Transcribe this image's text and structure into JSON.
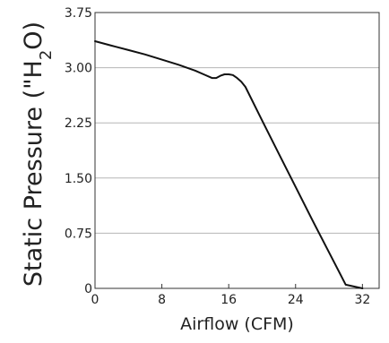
{
  "chart_data": {
    "type": "line",
    "xlabel": "Airflow (CFM)",
    "ylabel_main": "Static Pressure (\"H",
    "ylabel_sub": "2",
    "ylabel_tail": "O)",
    "xlim": [
      0,
      34
    ],
    "ylim": [
      0,
      3.75
    ],
    "grid": "horizontal",
    "x_ticks": [
      {
        "value": 0,
        "label": "0"
      },
      {
        "value": 8,
        "label": "8"
      },
      {
        "value": 16,
        "label": "16"
      },
      {
        "value": 24,
        "label": "24"
      },
      {
        "value": 32,
        "label": "32"
      }
    ],
    "y_ticks": [
      {
        "value": 0,
        "label": "0"
      },
      {
        "value": 0.75,
        "label": "0.75"
      },
      {
        "value": 1.5,
        "label": "1.50"
      },
      {
        "value": 2.25,
        "label": "2.25"
      },
      {
        "value": 3.0,
        "label": "3.00"
      },
      {
        "value": 3.75,
        "label": "3.75"
      }
    ],
    "series": [
      {
        "color": "#111111",
        "x": [
          0,
          2,
          4,
          6,
          8,
          10,
          12,
          13,
          14,
          14.5,
          15,
          15.5,
          16,
          16.5,
          17,
          17.5,
          18,
          20,
          22,
          24,
          26,
          28,
          30,
          32
        ],
        "y": [
          3.36,
          3.3,
          3.24,
          3.18,
          3.11,
          3.04,
          2.96,
          2.91,
          2.86,
          2.86,
          2.89,
          2.91,
          2.91,
          2.9,
          2.86,
          2.81,
          2.74,
          2.28,
          1.83,
          1.38,
          0.93,
          0.49,
          0.05,
          0.0
        ]
      }
    ]
  }
}
